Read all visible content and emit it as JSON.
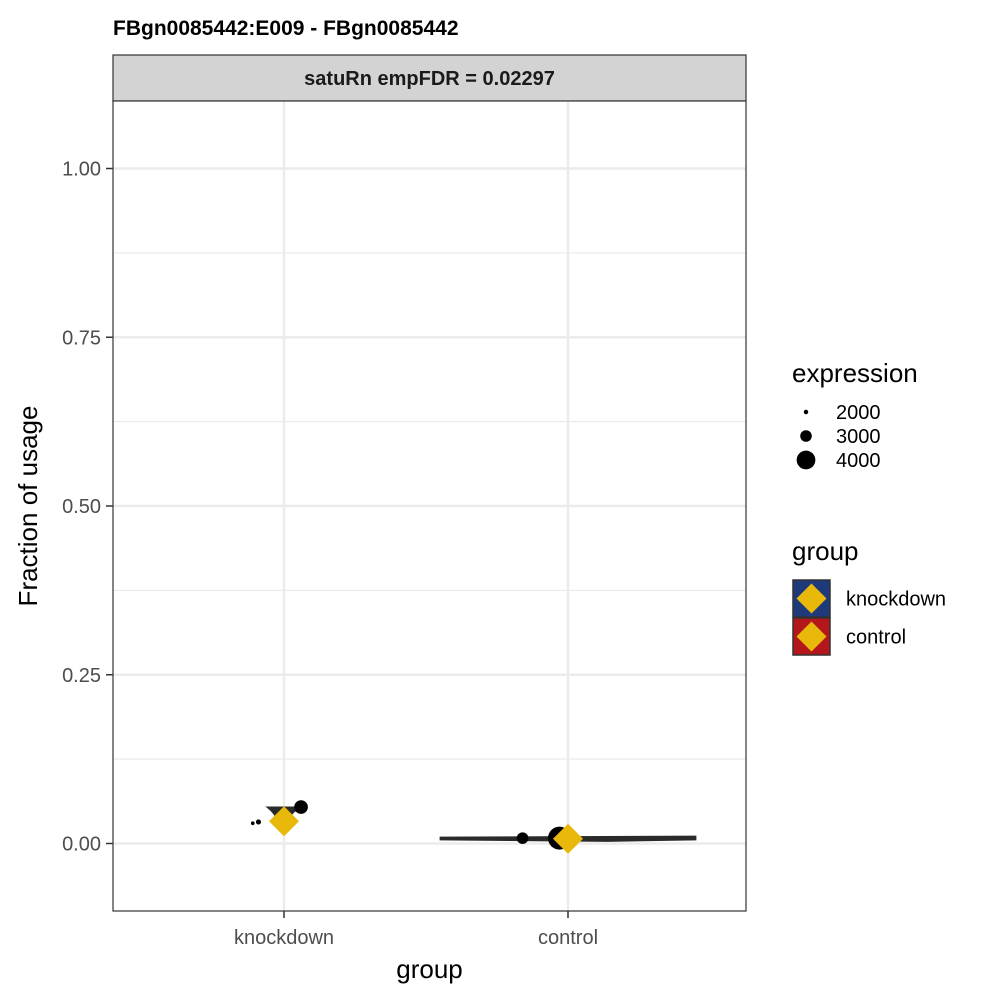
{
  "chart_data": {
    "type": "scatter",
    "title": "FBgn0085442:E009  -  FBgn0085442",
    "facet_label": "satuRn empFDR = 0.02297",
    "xlabel": "group",
    "ylabel": "Fraction of usage",
    "categories": [
      "knockdown",
      "control"
    ],
    "ylim": [
      -0.1,
      1.1
    ],
    "yticks": [
      0.0,
      0.25,
      0.5,
      0.75,
      1.0
    ],
    "ytick_labels": [
      "0.00",
      "0.25",
      "0.50",
      "0.75",
      "1.00"
    ],
    "grid": true,
    "points": [
      {
        "group": "knockdown",
        "x_jitter": -0.11,
        "y": 0.03,
        "expression": 1900
      },
      {
        "group": "knockdown",
        "x_jitter": -0.09,
        "y": 0.032,
        "expression": 2100
      },
      {
        "group": "knockdown",
        "x_jitter": 0.06,
        "y": 0.054,
        "expression": 3300
      },
      {
        "group": "control",
        "x_jitter": -0.16,
        "y": 0.008,
        "expression": 3000
      },
      {
        "group": "control",
        "x_jitter": -0.03,
        "y": 0.008,
        "expression": 4600
      }
    ],
    "violins": [
      {
        "group": "knockdown",
        "y_min": 0.03,
        "y_max": 0.054,
        "max_halfwidth": 0.06,
        "color": "#2a2a2a"
      },
      {
        "group": "control",
        "y_min": 0.004,
        "y_max": 0.01,
        "max_halfwidth": 0.45,
        "color": "#2a2a2a"
      }
    ],
    "means": [
      {
        "group": "knockdown",
        "y": 0.033
      },
      {
        "group": "control",
        "y": 0.007
      }
    ],
    "legend": {
      "placement": "right",
      "size": {
        "title": "expression",
        "entries": [
          {
            "label": "2000",
            "value": 2000
          },
          {
            "label": "3000",
            "value": 3000
          },
          {
            "label": "4000",
            "value": 4000
          }
        ]
      },
      "group": {
        "title": "group",
        "entries": [
          {
            "label": "knockdown",
            "fill": "#1f3a7a"
          },
          {
            "label": "control",
            "fill": "#b5161b"
          }
        ]
      }
    },
    "colors": {
      "mean_diamond": "#e8b90a",
      "point": "#000000",
      "strip_fill": "#d3d3d3",
      "grid": "#ebebeb"
    }
  }
}
